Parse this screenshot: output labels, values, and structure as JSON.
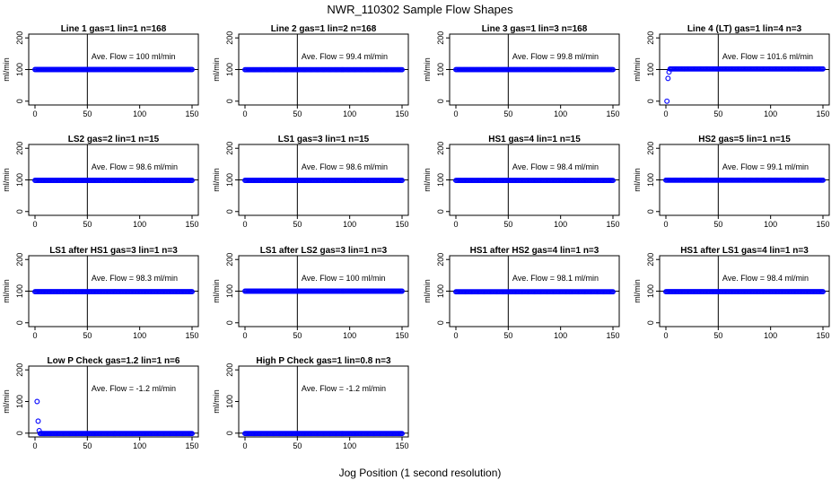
{
  "figure": {
    "title": "NWR_110302  Sample Flow Shapes",
    "xlabel": "Jog Position (1 second resolution)"
  },
  "chart_data": [
    {
      "type": "scatter",
      "title": "Line 1 gas=1 lin=1 n=168",
      "annotation": "Ave. Flow =  100  ml/min",
      "ylabel": "ml/min",
      "xlim": [
        0,
        150
      ],
      "ylim": [
        0,
        200
      ],
      "xticks": [
        "0",
        "50",
        "100",
        "150"
      ],
      "yticks": [
        "0",
        "100",
        "200"
      ],
      "hline": 100,
      "vline": 50,
      "level": 100,
      "outliers": []
    },
    {
      "type": "scatter",
      "title": "Line 2 gas=1 lin=2 n=168",
      "annotation": "Ave. Flow =  99.4  ml/min",
      "ylabel": "ml/min",
      "xlim": [
        0,
        150
      ],
      "ylim": [
        0,
        200
      ],
      "xticks": [
        "0",
        "50",
        "100",
        "150"
      ],
      "yticks": [
        "0",
        "100",
        "200"
      ],
      "hline": 100,
      "vline": 50,
      "level": 99.4,
      "outliers": []
    },
    {
      "type": "scatter",
      "title": "Line 3 gas=1 lin=3 n=168",
      "annotation": "Ave. Flow =  99.8  ml/min",
      "ylabel": "ml/min",
      "xlim": [
        0,
        150
      ],
      "ylim": [
        0,
        200
      ],
      "xticks": [
        "0",
        "50",
        "100",
        "150"
      ],
      "yticks": [
        "0",
        "100",
        "200"
      ],
      "hline": 100,
      "vline": 50,
      "level": 99.8,
      "outliers": []
    },
    {
      "type": "scatter",
      "title": "Line 4 (LT) gas=1 lin=4 n=3",
      "annotation": "Ave. Flow =  101.6  ml/min",
      "ylabel": "ml/min",
      "xlim": [
        0,
        150
      ],
      "ylim": [
        0,
        200
      ],
      "xticks": [
        "0",
        "50",
        "100",
        "150"
      ],
      "yticks": [
        "0",
        "100",
        "200"
      ],
      "hline": 100,
      "vline": 50,
      "level": 102,
      "outliers": [
        [
          1,
          0
        ],
        [
          2,
          72
        ],
        [
          3,
          92
        ]
      ]
    },
    {
      "type": "scatter",
      "title": "LS2 gas=2 lin=1 n=15",
      "annotation": "Ave. Flow =  98.6  ml/min",
      "ylabel": "ml/min",
      "xlim": [
        0,
        150
      ],
      "ylim": [
        0,
        200
      ],
      "xticks": [
        "0",
        "50",
        "100",
        "150"
      ],
      "yticks": [
        "0",
        "100",
        "200"
      ],
      "hline": 100,
      "vline": 50,
      "level": 98.6,
      "outliers": []
    },
    {
      "type": "scatter",
      "title": "LS1 gas=3 lin=1 n=15",
      "annotation": "Ave. Flow =  98.6  ml/min",
      "ylabel": "ml/min",
      "xlim": [
        0,
        150
      ],
      "ylim": [
        0,
        200
      ],
      "xticks": [
        "0",
        "50",
        "100",
        "150"
      ],
      "yticks": [
        "0",
        "100",
        "200"
      ],
      "hline": 100,
      "vline": 50,
      "level": 98.6,
      "outliers": []
    },
    {
      "type": "scatter",
      "title": "HS1 gas=4 lin=1 n=15",
      "annotation": "Ave. Flow =  98.4  ml/min",
      "ylabel": "ml/min",
      "xlim": [
        0,
        150
      ],
      "ylim": [
        0,
        200
      ],
      "xticks": [
        "0",
        "50",
        "100",
        "150"
      ],
      "yticks": [
        "0",
        "100",
        "200"
      ],
      "hline": 100,
      "vline": 50,
      "level": 98.4,
      "outliers": []
    },
    {
      "type": "scatter",
      "title": "HS2 gas=5 lin=1 n=15",
      "annotation": "Ave. Flow =  99.1  ml/min",
      "ylabel": "ml/min",
      "xlim": [
        0,
        150
      ],
      "ylim": [
        0,
        200
      ],
      "xticks": [
        "0",
        "50",
        "100",
        "150"
      ],
      "yticks": [
        "0",
        "100",
        "200"
      ],
      "hline": 100,
      "vline": 50,
      "level": 99.1,
      "outliers": []
    },
    {
      "type": "scatter",
      "title": "LS1 after HS1 gas=3 lin=1 n=3",
      "annotation": "Ave. Flow =  98.3  ml/min",
      "ylabel": "ml/min",
      "xlim": [
        0,
        150
      ],
      "ylim": [
        0,
        200
      ],
      "xticks": [
        "0",
        "50",
        "100",
        "150"
      ],
      "yticks": [
        "0",
        "100",
        "200"
      ],
      "hline": 100,
      "vline": 50,
      "level": 98.3,
      "outliers": []
    },
    {
      "type": "scatter",
      "title": "LS1 after LS2 gas=3 lin=1 n=3",
      "annotation": "Ave. Flow =  100  ml/min",
      "ylabel": "ml/min",
      "xlim": [
        0,
        150
      ],
      "ylim": [
        0,
        200
      ],
      "xticks": [
        "0",
        "50",
        "100",
        "150"
      ],
      "yticks": [
        "0",
        "100",
        "200"
      ],
      "hline": 100,
      "vline": 50,
      "level": 100,
      "outliers": []
    },
    {
      "type": "scatter",
      "title": "HS1 after HS2 gas=4 lin=1 n=3",
      "annotation": "Ave. Flow =  98.1  ml/min",
      "ylabel": "ml/min",
      "xlim": [
        0,
        150
      ],
      "ylim": [
        0,
        200
      ],
      "xticks": [
        "0",
        "50",
        "100",
        "150"
      ],
      "yticks": [
        "0",
        "100",
        "200"
      ],
      "hline": 100,
      "vline": 50,
      "level": 98.1,
      "outliers": []
    },
    {
      "type": "scatter",
      "title": "HS1 after LS1 gas=4 lin=1 n=3",
      "annotation": "Ave. Flow =  98.4  ml/min",
      "ylabel": "ml/min",
      "xlim": [
        0,
        150
      ],
      "ylim": [
        0,
        200
      ],
      "xticks": [
        "0",
        "50",
        "100",
        "150"
      ],
      "yticks": [
        "0",
        "100",
        "200"
      ],
      "hline": 100,
      "vline": 50,
      "level": 98.4,
      "outliers": []
    },
    {
      "type": "scatter",
      "title": "Low P Check gas=1.2 lin=1 n=6",
      "annotation": "Ave. Flow =  -1.2  ml/min",
      "ylabel": "ml/min",
      "xlim": [
        0,
        150
      ],
      "ylim": [
        0,
        200
      ],
      "xticks": [
        "0",
        "50",
        "100",
        "150"
      ],
      "yticks": [
        "0",
        "100",
        "200"
      ],
      "hline": 0,
      "vline": 50,
      "level": -1.2,
      "outliers": [
        [
          2,
          100
        ],
        [
          3,
          38
        ],
        [
          4,
          8
        ]
      ]
    },
    {
      "type": "scatter",
      "title": "High P Check gas=1 lin=0.8 n=3",
      "annotation": "Ave. Flow =  -1.2  ml/min",
      "ylabel": "ml/min",
      "xlim": [
        0,
        150
      ],
      "ylim": [
        0,
        200
      ],
      "xticks": [
        "0",
        "50",
        "100",
        "150"
      ],
      "yticks": [
        "0",
        "100",
        "200"
      ],
      "hline": 0,
      "vline": 50,
      "level": -1.2,
      "outliers": []
    }
  ]
}
